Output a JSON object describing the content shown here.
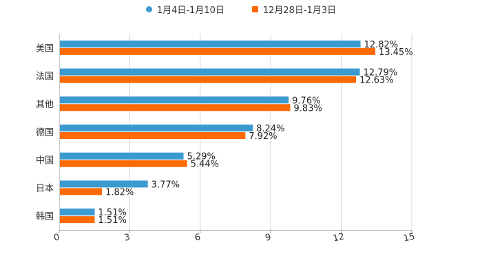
{
  "chart_data": {
    "type": "bar",
    "orientation": "horizontal",
    "categories": [
      "美国",
      "法国",
      "其他",
      "德国",
      "中国",
      "日本",
      "韩国"
    ],
    "series": [
      {
        "name": "1月4日-1月10日",
        "values": [
          12.82,
          12.79,
          9.76,
          8.24,
          5.29,
          3.77,
          1.51
        ],
        "color": "#3B9AD0",
        "marker": "circle"
      },
      {
        "name": "12月28日-1月3日",
        "values": [
          13.45,
          12.63,
          9.83,
          7.92,
          5.44,
          1.82,
          1.51
        ],
        "color": "#FF6A00",
        "marker": "square"
      }
    ],
    "title": "",
    "xlabel": "",
    "ylabel": "",
    "xlim": [
      0,
      15
    ],
    "xticks": [
      0,
      3,
      6,
      9,
      12,
      15
    ],
    "value_suffix": "%",
    "grid": true,
    "legend": "top-center"
  }
}
